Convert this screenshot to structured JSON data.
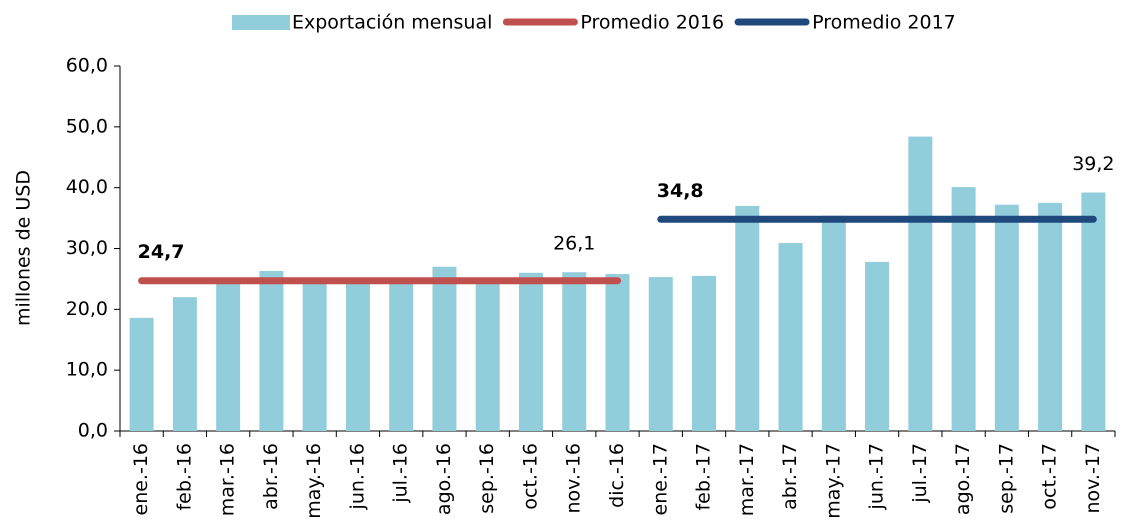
{
  "chart_data": {
    "type": "bar",
    "y_label": "millones de USD",
    "categories": [
      "ene.-16",
      "feb.-16",
      "mar.-16",
      "abr.-16",
      "may.-16",
      "jun.-16",
      "jul.-16",
      "ago.-16",
      "sep.-16",
      "oct.-16",
      "nov.-16",
      "dic.-16",
      "ene.-17",
      "feb.-17",
      "mar.-17",
      "abr.-17",
      "may.-17",
      "jun.-17",
      "jul.-17",
      "ago.-17",
      "sep.-17",
      "oct.-17",
      "nov.-17"
    ],
    "series": [
      {
        "name": "Exportación mensual",
        "type": "bar",
        "color": "#92cddc",
        "values": [
          18.6,
          22.0,
          24.3,
          26.3,
          24.2,
          24.5,
          24.5,
          27.0,
          24.6,
          26.0,
          26.1,
          25.8,
          25.3,
          25.5,
          37.0,
          30.9,
          35.4,
          27.8,
          48.4,
          40.1,
          37.2,
          37.5,
          39.2
        ],
        "value_labels": [
          null,
          null,
          null,
          null,
          null,
          null,
          null,
          null,
          null,
          null,
          "26,1",
          null,
          null,
          null,
          null,
          null,
          null,
          null,
          null,
          null,
          null,
          null,
          "39,2"
        ]
      },
      {
        "name": "Promedio 2016",
        "type": "line",
        "color": "#c0504d",
        "values": [
          24.7,
          24.7,
          24.7,
          24.7,
          24.7,
          24.7,
          24.7,
          24.7,
          24.7,
          24.7,
          24.7,
          24.7,
          null,
          null,
          null,
          null,
          null,
          null,
          null,
          null,
          null,
          null,
          null
        ],
        "value_labels": [
          "24,7",
          null,
          null,
          null,
          null,
          null,
          null,
          null,
          null,
          null,
          null,
          null,
          null,
          null,
          null,
          null,
          null,
          null,
          null,
          null,
          null,
          null,
          null
        ]
      },
      {
        "name": "Promedio 2017",
        "type": "line",
        "color": "#1f497d",
        "values": [
          null,
          null,
          null,
          null,
          null,
          null,
          null,
          null,
          null,
          null,
          null,
          null,
          34.8,
          34.8,
          34.8,
          34.8,
          34.8,
          34.8,
          34.8,
          34.8,
          34.8,
          34.8,
          34.8
        ],
        "value_labels": [
          null,
          null,
          null,
          null,
          null,
          null,
          null,
          null,
          null,
          null,
          null,
          null,
          "34,8",
          null,
          null,
          null,
          null,
          null,
          null,
          null,
          null,
          null,
          null
        ]
      }
    ],
    "ylim": [
      0,
      60
    ],
    "yticks": [
      {
        "value": 0,
        "label": "0,0"
      },
      {
        "value": 10,
        "label": "10,0"
      },
      {
        "value": 20,
        "label": "20,0"
      },
      {
        "value": 30,
        "label": "30,0"
      },
      {
        "value": 40,
        "label": "40,0"
      },
      {
        "value": 50,
        "label": "50,0"
      },
      {
        "value": 60,
        "label": "60,0"
      }
    ]
  }
}
